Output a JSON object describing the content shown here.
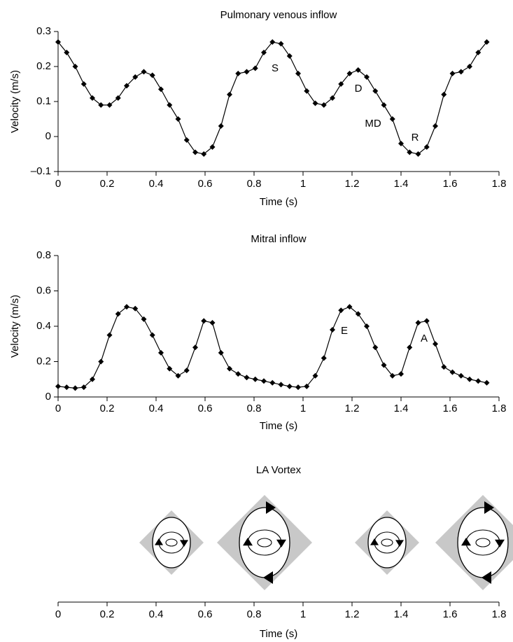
{
  "chart_data": [
    {
      "type": "line",
      "title": "Pulmonary venous inflow",
      "xlabel": "Time (s)",
      "ylabel": "Velocity (m/s)",
      "x": [
        0,
        0.035,
        0.07,
        0.105,
        0.14,
        0.175,
        0.21,
        0.245,
        0.28,
        0.315,
        0.35,
        0.385,
        0.42,
        0.455,
        0.49,
        0.525,
        0.56,
        0.595,
        0.63,
        0.665,
        0.7,
        0.735,
        0.77,
        0.805,
        0.84,
        0.875,
        0.91,
        0.945,
        0.98,
        1.015,
        1.05,
        1.085,
        1.12,
        1.155,
        1.19,
        1.225,
        1.26,
        1.295,
        1.33,
        1.365,
        1.4,
        1.435,
        1.47,
        1.505,
        1.54,
        1.575,
        1.61,
        1.645,
        1.68,
        1.715,
        1.75
      ],
      "values": [
        0.27,
        0.24,
        0.2,
        0.15,
        0.11,
        0.09,
        0.09,
        0.11,
        0.145,
        0.17,
        0.185,
        0.175,
        0.135,
        0.09,
        0.05,
        -0.01,
        -0.045,
        -0.05,
        -0.03,
        0.03,
        0.12,
        0.18,
        0.185,
        0.195,
        0.24,
        0.27,
        0.265,
        0.23,
        0.18,
        0.13,
        0.095,
        0.09,
        0.11,
        0.15,
        0.18,
        0.19,
        0.17,
        0.13,
        0.09,
        0.05,
        -0.02,
        -0.045,
        -0.05,
        -0.03,
        0.03,
        0.12,
        0.18,
        0.185,
        0.2,
        0.24,
        0.27
      ],
      "color": "#000000",
      "xlim": [
        0,
        1.8
      ],
      "xticks": [
        0,
        0.2,
        0.4,
        0.6,
        0.8,
        1,
        1.2,
        1.4,
        1.6,
        1.8
      ],
      "ylim": [
        -0.1,
        0.3
      ],
      "yticks": [
        {
          "value": -0.1,
          "label": "–0.1"
        },
        0,
        0.1,
        0.2,
        0.3
      ],
      "annotations": [
        "S",
        "D",
        "MD",
        "R"
      ]
    },
    {
      "type": "line",
      "title": "Mitral inflow",
      "xlabel": "Time (s)",
      "ylabel": "Velocity (m/s)",
      "x": [
        0,
        0.035,
        0.07,
        0.105,
        0.14,
        0.175,
        0.21,
        0.245,
        0.28,
        0.315,
        0.35,
        0.385,
        0.42,
        0.455,
        0.49,
        0.525,
        0.56,
        0.595,
        0.63,
        0.665,
        0.7,
        0.735,
        0.77,
        0.805,
        0.84,
        0.875,
        0.91,
        0.945,
        0.98,
        1.015,
        1.05,
        1.085,
        1.12,
        1.155,
        1.19,
        1.225,
        1.26,
        1.295,
        1.33,
        1.365,
        1.4,
        1.435,
        1.47,
        1.505,
        1.54,
        1.575,
        1.61,
        1.645,
        1.68,
        1.715,
        1.75
      ],
      "values": [
        0.06,
        0.055,
        0.05,
        0.055,
        0.1,
        0.2,
        0.35,
        0.47,
        0.51,
        0.5,
        0.44,
        0.35,
        0.25,
        0.16,
        0.12,
        0.15,
        0.28,
        0.43,
        0.42,
        0.25,
        0.16,
        0.13,
        0.11,
        0.1,
        0.09,
        0.08,
        0.07,
        0.06,
        0.055,
        0.06,
        0.12,
        0.22,
        0.38,
        0.49,
        0.51,
        0.47,
        0.4,
        0.28,
        0.18,
        0.12,
        0.13,
        0.28,
        0.42,
        0.43,
        0.3,
        0.17,
        0.14,
        0.12,
        0.1,
        0.09,
        0.08
      ],
      "color": "#000000",
      "xlim": [
        0,
        1.8
      ],
      "xticks": [
        0,
        0.2,
        0.4,
        0.6,
        0.8,
        1,
        1.2,
        1.4,
        1.6,
        1.8
      ],
      "ylim": [
        0,
        0.8
      ],
      "yticks": [
        0,
        0.2,
        0.4,
        0.6,
        0.8
      ],
      "annotations": [
        "E",
        "A"
      ]
    },
    {
      "type": "timeline",
      "title": "LA Vortex",
      "xlabel": "Time (s)",
      "xlim": [
        0,
        1.8
      ],
      "xticks": [
        0,
        0.2,
        0.4,
        0.6,
        0.8,
        1,
        1.2,
        1.4,
        1.6,
        1.8
      ]
    }
  ]
}
